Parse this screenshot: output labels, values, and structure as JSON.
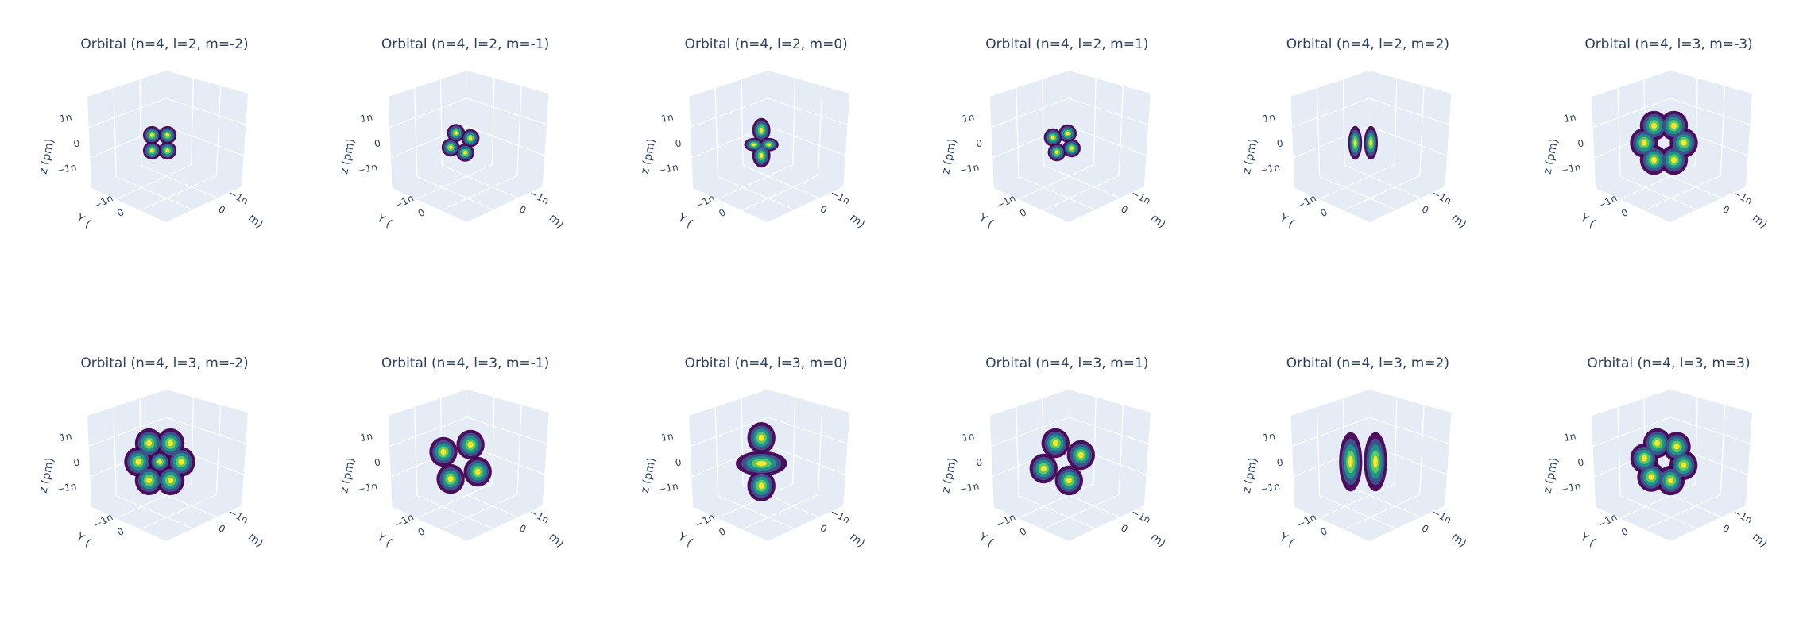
{
  "chart_data": [
    {
      "type": "3d-surface",
      "title": "Orbital (n=4, l=2, m=-2)",
      "n": 4,
      "l": 2,
      "m": -2,
      "z_axis_label": "z (pm)",
      "y_axis_label": "Y (",
      "x_axis_label": "m)",
      "z_ticks": [
        "1n",
        "0",
        "−1n"
      ],
      "y_ticks": [
        "−1n",
        "0"
      ],
      "x_ticks": [
        "−1n",
        "0"
      ],
      "colorscale": [
        "#440154",
        "#3b528b",
        "#21918c",
        "#5ec962",
        "#fde725"
      ]
    },
    {
      "type": "3d-surface",
      "title": "Orbital (n=4, l=2, m=-1)",
      "n": 4,
      "l": 2,
      "m": -1,
      "z_axis_label": "z (pm)",
      "y_axis_label": "Y (",
      "x_axis_label": "m)",
      "z_ticks": [
        "1n",
        "0",
        "−1n"
      ],
      "y_ticks": [
        "−1n",
        "0"
      ],
      "x_ticks": [
        "−1n",
        "0"
      ],
      "colorscale": [
        "#440154",
        "#3b528b",
        "#21918c",
        "#5ec962",
        "#fde725"
      ]
    },
    {
      "type": "3d-surface",
      "title": "Orbital (n=4, l=2, m=0)",
      "n": 4,
      "l": 2,
      "m": 0,
      "z_axis_label": "z (pm)",
      "y_axis_label": "Y (",
      "x_axis_label": "m)",
      "z_ticks": [
        "1n",
        "0",
        "−1n"
      ],
      "y_ticks": [
        "−1n",
        "0"
      ],
      "x_ticks": [
        "−1n",
        "0"
      ],
      "colorscale": [
        "#440154",
        "#3b528b",
        "#21918c",
        "#5ec962",
        "#fde725"
      ]
    },
    {
      "type": "3d-surface",
      "title": "Orbital (n=4, l=2, m=1)",
      "n": 4,
      "l": 2,
      "m": 1,
      "z_axis_label": "z (pm)",
      "y_axis_label": "Y (",
      "x_axis_label": "m)",
      "z_ticks": [
        "1n",
        "0",
        "−1n"
      ],
      "y_ticks": [
        "−1n",
        "0"
      ],
      "x_ticks": [
        "−1n",
        "0"
      ],
      "colorscale": [
        "#440154",
        "#3b528b",
        "#21918c",
        "#5ec962",
        "#fde725"
      ]
    },
    {
      "type": "3d-surface",
      "title": "Orbital (n=4, l=2, m=2)",
      "n": 4,
      "l": 2,
      "m": 2,
      "z_axis_label": "z (pm)",
      "y_axis_label": "Y (",
      "x_axis_label": "m)",
      "z_ticks": [
        "1n",
        "0",
        "−1n"
      ],
      "y_ticks": [
        "−1n",
        "0"
      ],
      "x_ticks": [
        "−1n",
        "0"
      ],
      "colorscale": [
        "#440154",
        "#3b528b",
        "#21918c",
        "#5ec962",
        "#fde725"
      ]
    },
    {
      "type": "3d-surface",
      "title": "Orbital (n=4, l=3, m=-3)",
      "n": 4,
      "l": 3,
      "m": -3,
      "z_axis_label": "z (pm)",
      "y_axis_label": "Y (",
      "x_axis_label": "m)",
      "z_ticks": [
        "1n",
        "0",
        "−1n"
      ],
      "y_ticks": [
        "−1n",
        "0"
      ],
      "x_ticks": [
        "−1n",
        "0"
      ],
      "colorscale": [
        "#440154",
        "#3b528b",
        "#21918c",
        "#5ec962",
        "#fde725"
      ]
    },
    {
      "type": "3d-surface",
      "title": "Orbital (n=4, l=3, m=-2)",
      "n": 4,
      "l": 3,
      "m": -2,
      "z_axis_label": "z (pm)",
      "y_axis_label": "Y (",
      "x_axis_label": "m)",
      "z_ticks": [
        "1n",
        "0",
        "−1n"
      ],
      "y_ticks": [
        "−1n",
        "0"
      ],
      "x_ticks": [
        "−1n",
        "0"
      ],
      "colorscale": [
        "#440154",
        "#3b528b",
        "#21918c",
        "#5ec962",
        "#fde725"
      ]
    },
    {
      "type": "3d-surface",
      "title": "Orbital (n=4, l=3, m=-1)",
      "n": 4,
      "l": 3,
      "m": -1,
      "z_axis_label": "z (pm)",
      "y_axis_label": "Y (",
      "x_axis_label": "m)",
      "z_ticks": [
        "1n",
        "0",
        "−1n"
      ],
      "y_ticks": [
        "−1n",
        "0"
      ],
      "x_ticks": [
        "−1n",
        "0"
      ],
      "colorscale": [
        "#440154",
        "#3b528b",
        "#21918c",
        "#5ec962",
        "#fde725"
      ]
    },
    {
      "type": "3d-surface",
      "title": "Orbital (n=4, l=3, m=0)",
      "n": 4,
      "l": 3,
      "m": 0,
      "z_axis_label": "z (pm)",
      "y_axis_label": "Y (",
      "x_axis_label": "m)",
      "z_ticks": [
        "1n",
        "0",
        "−1n"
      ],
      "y_ticks": [
        "−1n",
        "0"
      ],
      "x_ticks": [
        "−1n",
        "0"
      ],
      "colorscale": [
        "#440154",
        "#3b528b",
        "#21918c",
        "#5ec962",
        "#fde725"
      ]
    },
    {
      "type": "3d-surface",
      "title": "Orbital (n=4, l=3, m=1)",
      "n": 4,
      "l": 3,
      "m": 1,
      "z_axis_label": "z (pm)",
      "y_axis_label": "Y (",
      "x_axis_label": "m)",
      "z_ticks": [
        "1n",
        "0",
        "−1n"
      ],
      "y_ticks": [
        "−1n",
        "0"
      ],
      "x_ticks": [
        "−1n",
        "0"
      ],
      "colorscale": [
        "#440154",
        "#3b528b",
        "#21918c",
        "#5ec962",
        "#fde725"
      ]
    },
    {
      "type": "3d-surface",
      "title": "Orbital (n=4, l=3, m=2)",
      "n": 4,
      "l": 3,
      "m": 2,
      "z_axis_label": "z (pm)",
      "y_axis_label": "Y (",
      "x_axis_label": "m)",
      "z_ticks": [
        "1n",
        "0",
        "−1n"
      ],
      "y_ticks": [
        "−1n",
        "0"
      ],
      "x_ticks": [
        "−1n",
        "0"
      ],
      "colorscale": [
        "#440154",
        "#3b528b",
        "#21918c",
        "#5ec962",
        "#fde725"
      ]
    },
    {
      "type": "3d-surface",
      "title": "Orbital (n=4, l=3, m=3)",
      "n": 4,
      "l": 3,
      "m": 3,
      "z_axis_label": "z (pm)",
      "y_axis_label": "Y (",
      "x_axis_label": "m)",
      "z_ticks": [
        "1n",
        "0",
        "−1n"
      ],
      "y_ticks": [
        "−1n",
        "0"
      ],
      "x_ticks": [
        "−1n",
        "0"
      ],
      "colorscale": [
        "#440154",
        "#3b528b",
        "#21918c",
        "#5ec962",
        "#fde725"
      ]
    }
  ]
}
